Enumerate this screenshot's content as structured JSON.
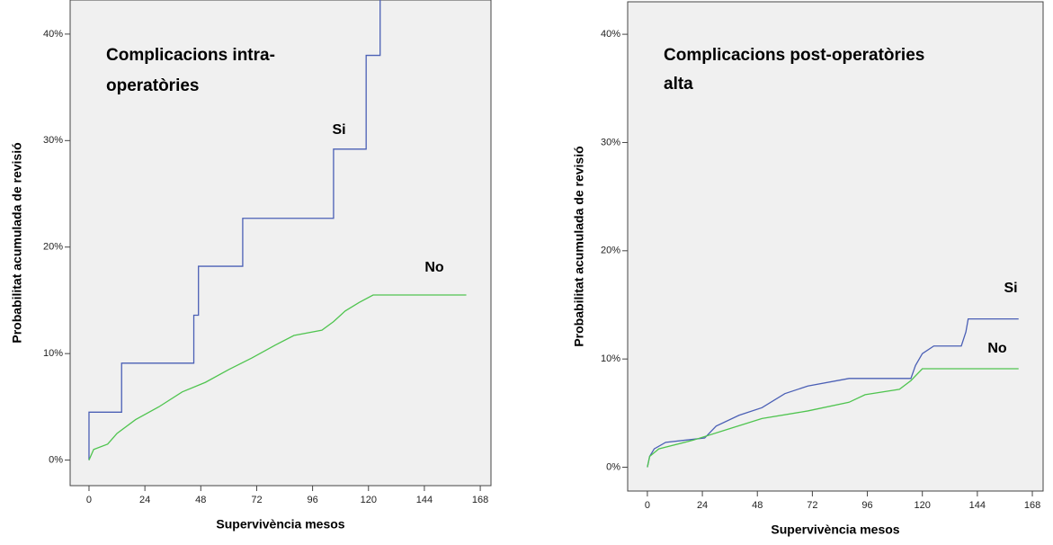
{
  "chart_data": [
    {
      "type": "line",
      "title": [
        "Complicacions intra-",
        "operatòries"
      ],
      "xlabel": "Supervivència mesos",
      "ylabel": "Probabilitat acumulada de revisió",
      "xlim": [
        -8.1,
        172.6
      ],
      "ylim": [
        -2.4,
        43.2
      ],
      "xticks": [
        0,
        24,
        48,
        72,
        96,
        120,
        144,
        168
      ],
      "yticks": [
        {
          "value": 0,
          "label": "0%"
        },
        {
          "value": 10,
          "label": "10%"
        },
        {
          "value": 20,
          "label": "20%"
        },
        {
          "value": 30,
          "label": "30%"
        },
        {
          "value": 40,
          "label": "40%"
        }
      ],
      "series": [
        {
          "name": "Si",
          "color": "#4a5fb5",
          "x": [
            0,
            0,
            14,
            14,
            45,
            45,
            47,
            47,
            66,
            66,
            105,
            105,
            119,
            119,
            125,
            125
          ],
          "values": [
            0,
            4.5,
            4.5,
            9.1,
            9.1,
            13.6,
            13.6,
            18.2,
            18.2,
            22.7,
            22.7,
            29.2,
            29.2,
            38,
            38,
            45
          ]
        },
        {
          "name": "No",
          "color": "#4fc44f",
          "x": [
            0,
            2,
            8,
            12,
            20,
            30,
            40,
            50,
            60,
            70,
            80,
            88,
            100,
            105,
            110,
            116,
            122,
            162
          ],
          "values": [
            0,
            1,
            1.5,
            2.5,
            3.8,
            5,
            6.4,
            7.3,
            8.5,
            9.6,
            10.8,
            11.7,
            12.2,
            13,
            14,
            14.8,
            15.5,
            15.5
          ]
        }
      ]
    },
    {
      "type": "line",
      "title": [
        "Complicacions post-operatòries",
        "alta"
      ],
      "xlabel": "Supervivència mesos",
      "ylabel": "Probabilitat acumulada de revisió",
      "xlim": [
        -8.6,
        172.7
      ],
      "ylim": [
        -2.2,
        43.0
      ],
      "xticks": [
        0,
        24,
        48,
        72,
        96,
        120,
        144,
        168
      ],
      "yticks": [
        {
          "value": 0,
          "label": "0%"
        },
        {
          "value": 10,
          "label": "10%"
        },
        {
          "value": 20,
          "label": "20%"
        },
        {
          "value": 30,
          "label": "30%"
        },
        {
          "value": 40,
          "label": "40%"
        }
      ],
      "series": [
        {
          "name": "Si",
          "color": "#4a5fb5",
          "x": [
            0,
            1,
            3,
            8,
            25,
            30,
            40,
            50,
            60,
            70,
            88,
            115,
            117,
            120,
            125,
            137,
            139,
            140,
            162
          ],
          "values": [
            0,
            1,
            1.7,
            2.3,
            2.7,
            3.8,
            4.8,
            5.5,
            6.8,
            7.5,
            8.2,
            8.2,
            9.4,
            10.5,
            11.2,
            11.2,
            12.5,
            13.7,
            13.7
          ]
        },
        {
          "name": "No",
          "color": "#4fc44f",
          "x": [
            0,
            1,
            5,
            20,
            35,
            50,
            70,
            88,
            95,
            110,
            115,
            120,
            162
          ],
          "values": [
            0,
            1,
            1.7,
            2.5,
            3.5,
            4.5,
            5.2,
            6,
            6.7,
            7.2,
            8,
            9.1,
            9.1
          ]
        }
      ]
    }
  ]
}
